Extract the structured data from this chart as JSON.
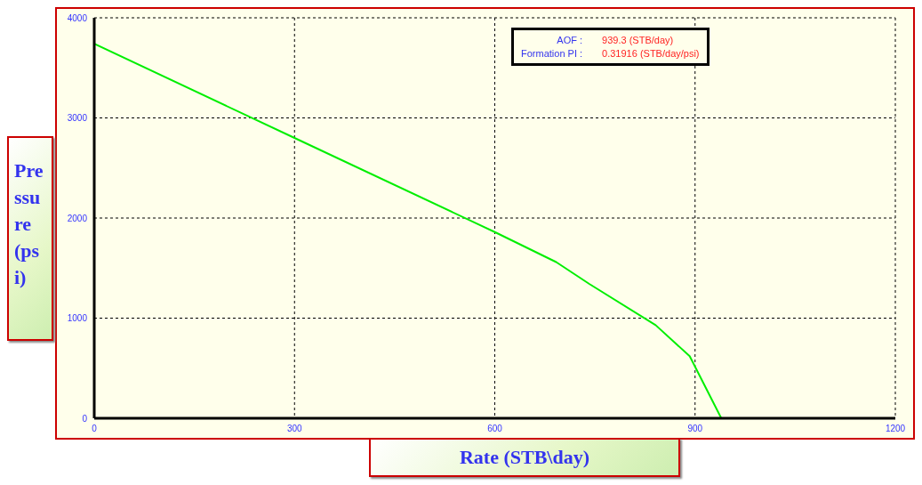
{
  "chart_data": {
    "type": "line",
    "xlabel": "Rate (STB\\day)",
    "ylabel": "Pressure (psi)",
    "x": [
      0,
      300,
      600,
      692,
      742,
      841,
      892,
      939.3
    ],
    "series": [
      {
        "color": "#00ee00",
        "values": [
          3740,
          2800,
          1860,
          1560,
          1340,
          930,
          620,
          0
        ]
      }
    ],
    "xlim": [
      0,
      1200
    ],
    "xticks": [
      0,
      300,
      600,
      900,
      1200
    ],
    "ylim": [
      0,
      4000
    ],
    "yticks": [
      0,
      1000,
      2000,
      3000,
      4000
    ],
    "grid": true,
    "marker": "none",
    "line_style": "solid",
    "annotations": [
      "AOF :",
      "939.3 (STB/day)",
      "Formation PI :",
      "0.31916 (STB/day/psi)"
    ]
  }
}
